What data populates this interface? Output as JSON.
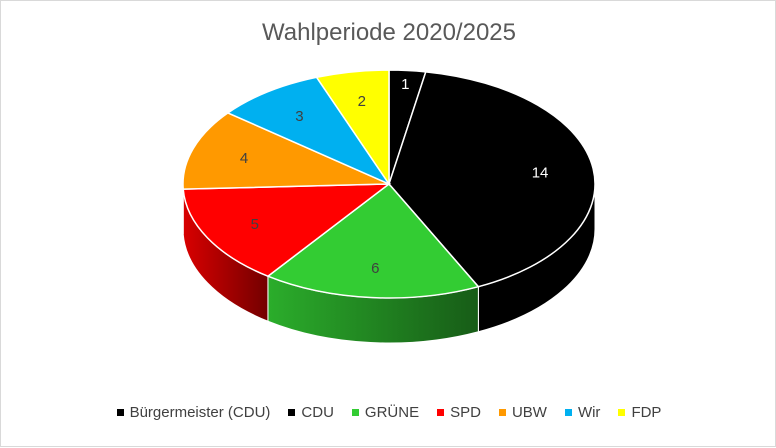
{
  "chart_data": {
    "type": "pie",
    "title": "Wahlperiode 2020/2025",
    "legend_position": "bottom",
    "slices": [
      {
        "label": "Bürgermeister (CDU)",
        "value": 1,
        "color": "#000000",
        "label_color": "#ffffff"
      },
      {
        "label": "CDU",
        "value": 14,
        "color": "#000000",
        "label_color": "#ffffff"
      },
      {
        "label": "GRÜNE",
        "value": 6,
        "color": "#33cc33",
        "label_color": "#404040"
      },
      {
        "label": "SPD",
        "value": 5,
        "color": "#ff0000",
        "label_color": "#404040"
      },
      {
        "label": "UBW",
        "value": 4,
        "color": "#ff9900",
        "label_color": "#404040"
      },
      {
        "label": "Wir",
        "value": 3,
        "color": "#00b0f0",
        "label_color": "#404040"
      },
      {
        "label": "FDP",
        "value": 2,
        "color": "#ffff00",
        "label_color": "#404040"
      }
    ]
  }
}
